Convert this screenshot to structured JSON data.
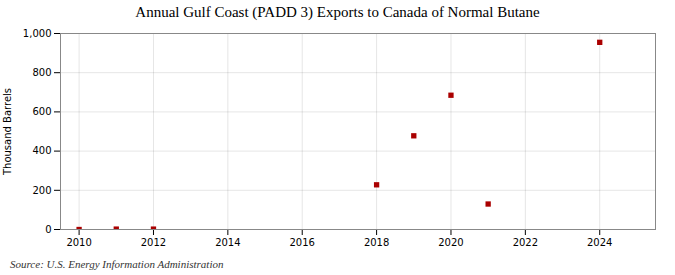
{
  "chart_data": {
    "type": "scatter",
    "title": "Annual Gulf Coast (PADD 3) Exports to Canada of Normal Butane",
    "ylabel": "Thousand Barrels",
    "annotations": [
      "Source: U.S. Energy Information Administration"
    ],
    "x": [
      2010,
      2011,
      2012,
      2018,
      2019,
      2020,
      2021,
      2024
    ],
    "values": [
      0,
      2,
      2,
      228,
      478,
      685,
      130,
      955
    ],
    "color": "#aa0000",
    "marker": "square",
    "xlim": [
      2009.5,
      2025.5
    ],
    "ylim": [
      0,
      1000
    ],
    "xticks": [
      2010,
      2012,
      2014,
      2016,
      2018,
      2020,
      2022,
      2024
    ],
    "yticks": [
      0,
      200,
      400,
      600,
      800,
      {
        "value": 1000,
        "label": "1,000"
      }
    ],
    "grid": true
  }
}
